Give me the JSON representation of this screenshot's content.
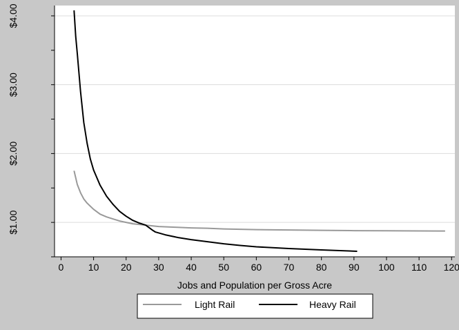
{
  "chart_data": {
    "type": "line",
    "title": "",
    "xlabel": "Jobs and Population per Gross Acre",
    "ylabel": "",
    "xlim": [
      -2,
      121
    ],
    "ylim": [
      0.5,
      4.15
    ],
    "x_ticks": [
      0,
      10,
      20,
      30,
      40,
      50,
      60,
      70,
      80,
      90,
      100,
      110,
      120
    ],
    "y_ticks_minor": [
      0.5,
      1.0,
      1.5,
      2.0,
      2.5,
      3.0,
      3.5,
      4.0
    ],
    "y_tick_labels": [
      {
        "value": 1.0,
        "label": "$1.00"
      },
      {
        "value": 2.0,
        "label": "$2.00"
      },
      {
        "value": 3.0,
        "label": "$3.00"
      },
      {
        "value": 4.0,
        "label": "$4.00"
      }
    ],
    "grid": true,
    "legend_position": "bottom",
    "series": [
      {
        "name": "Light Rail",
        "color": "#999999",
        "x": [
          4,
          5,
          6,
          7,
          8,
          10,
          12,
          14,
          16,
          18,
          20,
          22,
          24,
          26,
          30,
          35,
          40,
          45,
          50,
          55,
          60,
          70,
          80,
          90,
          100,
          110,
          118
        ],
        "y": [
          1.75,
          1.55,
          1.43,
          1.34,
          1.28,
          1.19,
          1.12,
          1.08,
          1.05,
          1.02,
          1.0,
          0.98,
          0.97,
          0.96,
          0.94,
          0.93,
          0.92,
          0.915,
          0.905,
          0.9,
          0.895,
          0.89,
          0.885,
          0.88,
          0.878,
          0.876,
          0.875
        ]
      },
      {
        "name": "Heavy Rail",
        "color": "#000000",
        "x": [
          4,
          4.5,
          5,
          6,
          7,
          8,
          9,
          10,
          12,
          14,
          16,
          18,
          20,
          22,
          24,
          26,
          28,
          29,
          32,
          36,
          40,
          45,
          50,
          55,
          60,
          70,
          80,
          91
        ],
        "y": [
          4.08,
          3.7,
          3.45,
          2.9,
          2.45,
          2.15,
          1.92,
          1.76,
          1.54,
          1.38,
          1.26,
          1.16,
          1.09,
          1.03,
          0.99,
          0.96,
          0.89,
          0.86,
          0.82,
          0.78,
          0.75,
          0.72,
          0.69,
          0.665,
          0.645,
          0.62,
          0.6,
          0.58
        ]
      }
    ]
  }
}
